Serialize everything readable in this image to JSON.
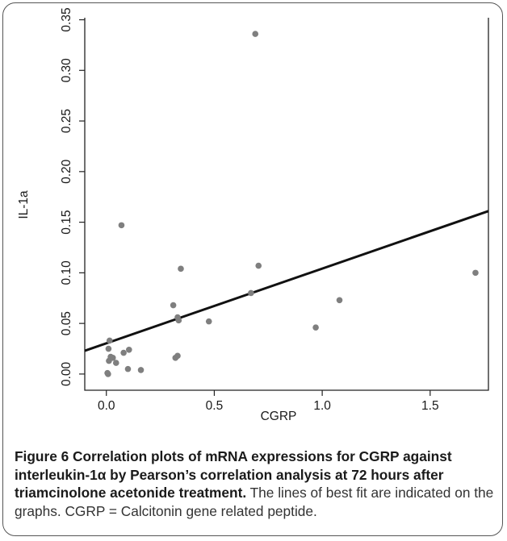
{
  "chart_data": {
    "type": "scatter",
    "xlabel": "CGRP",
    "ylabel": "IL-1a",
    "xlim": [
      -0.1,
      1.77
    ],
    "ylim": [
      -0.016,
      0.352
    ],
    "xticks": [
      "0.0",
      "0.5",
      "1.0",
      "1.5"
    ],
    "yticks": [
      "0.00",
      "0.05",
      "0.10",
      "0.15",
      "0.20",
      "0.25",
      "0.30",
      "0.35"
    ],
    "grid": false,
    "colors": {
      "points": "#7f7f7f",
      "fit_line": "#111111",
      "axes": "#222222"
    },
    "points": [
      {
        "x": 0.005,
        "y": 0.001
      },
      {
        "x": 0.008,
        "y": 0.0
      },
      {
        "x": 0.01,
        "y": 0.025
      },
      {
        "x": 0.012,
        "y": 0.013
      },
      {
        "x": 0.015,
        "y": 0.033
      },
      {
        "x": 0.02,
        "y": 0.017
      },
      {
        "x": 0.03,
        "y": 0.016
      },
      {
        "x": 0.045,
        "y": 0.011
      },
      {
        "x": 0.07,
        "y": 0.147
      },
      {
        "x": 0.08,
        "y": 0.021
      },
      {
        "x": 0.1,
        "y": 0.005
      },
      {
        "x": 0.105,
        "y": 0.024
      },
      {
        "x": 0.16,
        "y": 0.004
      },
      {
        "x": 0.31,
        "y": 0.068
      },
      {
        "x": 0.32,
        "y": 0.016
      },
      {
        "x": 0.33,
        "y": 0.056
      },
      {
        "x": 0.33,
        "y": 0.018
      },
      {
        "x": 0.335,
        "y": 0.053
      },
      {
        "x": 0.345,
        "y": 0.104
      },
      {
        "x": 0.475,
        "y": 0.052
      },
      {
        "x": 0.67,
        "y": 0.08
      },
      {
        "x": 0.69,
        "y": 0.336
      },
      {
        "x": 0.705,
        "y": 0.107
      },
      {
        "x": 0.97,
        "y": 0.046
      },
      {
        "x": 1.08,
        "y": 0.073
      },
      {
        "x": 1.71,
        "y": 0.1
      }
    ],
    "fit_line": {
      "x": [
        -0.1,
        1.77
      ],
      "y": [
        0.023,
        0.161
      ]
    }
  },
  "caption": {
    "bold": "Figure 6 Correlation plots of mRNA expressions for CGRP against interleukin-1α by Pearson’s correlation analysis at 72 hours after triamcinolone acetonide treatment.",
    "plain": " The lines of best fit are indicated on the graphs. CGRP = Calcitonin gene related peptide."
  }
}
